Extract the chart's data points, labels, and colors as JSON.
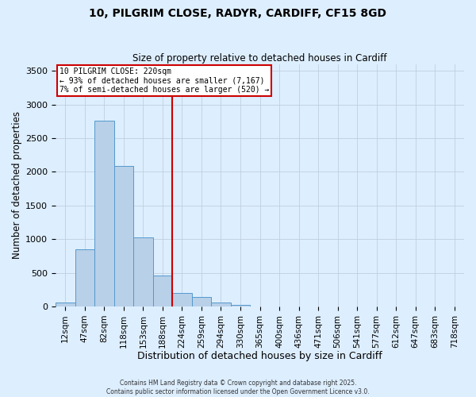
{
  "title": "10, PILGRIM CLOSE, RADYR, CARDIFF, CF15 8GD",
  "subtitle": "Size of property relative to detached houses in Cardiff",
  "xlabel": "Distribution of detached houses by size in Cardiff",
  "ylabel": "Number of detached properties",
  "bar_categories": [
    "12sqm",
    "47sqm",
    "82sqm",
    "118sqm",
    "153sqm",
    "188sqm",
    "224sqm",
    "259sqm",
    "294sqm",
    "330sqm",
    "365sqm",
    "400sqm",
    "436sqm",
    "471sqm",
    "506sqm",
    "541sqm",
    "577sqm",
    "612sqm",
    "647sqm",
    "683sqm",
    "718sqm"
  ],
  "bar_values": [
    55,
    845,
    2760,
    2090,
    1020,
    460,
    200,
    145,
    55,
    20,
    0,
    0,
    0,
    0,
    0,
    0,
    0,
    0,
    0,
    0,
    0
  ],
  "bar_color": "#b8d0e8",
  "bar_edge_color": "#5599cc",
  "bg_color": "#ddeeff",
  "grid_color": "#c0cfe0",
  "vline_color": "#cc0000",
  "annotation_title": "10 PILGRIM CLOSE: 220sqm",
  "annotation_line1": "← 93% of detached houses are smaller (7,167)",
  "annotation_line2": "7% of semi-detached houses are larger (520) →",
  "annotation_box_color": "#ffffff",
  "annotation_box_edge": "#cc0000",
  "ylim": [
    0,
    3600
  ],
  "yticks": [
    0,
    500,
    1000,
    1500,
    2000,
    2500,
    3000,
    3500
  ],
  "footer1": "Contains HM Land Registry data © Crown copyright and database right 2025.",
  "footer2": "Contains public sector information licensed under the Open Government Licence v3.0."
}
